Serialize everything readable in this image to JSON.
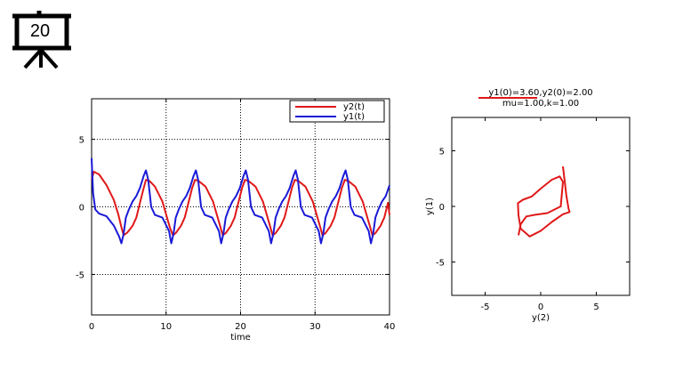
{
  "slide": {
    "number": "20",
    "icon": "presentation-screen-icon"
  },
  "chart_data": [
    {
      "type": "line",
      "title": "",
      "xlabel": "time",
      "ylabel": "",
      "xlim": [
        0,
        40
      ],
      "ylim": [
        -8,
        8
      ],
      "xticks": [
        0,
        10,
        20,
        30,
        40
      ],
      "yticks": [
        -5,
        0,
        5
      ],
      "grid": true,
      "legend": "top-right",
      "period": 6.7,
      "series": [
        {
          "name": "y2(t)",
          "color": "#e01818",
          "x": [
            0,
            0.3,
            1,
            2,
            3,
            3.6,
            4,
            4.3,
            4.8,
            5.5,
            6,
            6.5,
            7,
            7.3,
            7.8,
            8.5,
            9.5,
            10.5,
            10.9,
            11.3,
            12,
            12.5,
            13,
            13.5,
            13.9,
            14.4,
            15.3,
            16.3,
            17.3,
            17.6,
            18,
            18.7,
            19.2,
            19.7,
            20.2,
            20.6,
            21.1,
            22,
            23,
            24,
            24.3,
            24.7,
            25.4,
            25.9,
            26.4,
            26.9,
            27.3,
            27.8,
            28.7,
            29.7,
            30.7,
            31,
            31.4,
            32.1,
            32.6,
            33.1,
            33.6,
            34,
            34.5,
            35.4,
            36.4,
            37.4,
            37.7,
            38.1,
            38.8,
            39.3,
            39.8,
            40
          ],
          "y": [
            2.0,
            2.6,
            2.4,
            1.6,
            0.5,
            -0.6,
            -1.5,
            -2.1,
            -1.9,
            -1.4,
            -0.8,
            0.3,
            1.4,
            2.0,
            1.9,
            1.5,
            0.4,
            -1.5,
            -2.1,
            -1.95,
            -1.4,
            -0.8,
            0.3,
            1.4,
            2.0,
            1.9,
            1.5,
            0.4,
            -1.5,
            -2.1,
            -1.95,
            -1.4,
            -0.8,
            0.3,
            1.4,
            2.0,
            1.9,
            1.5,
            0.4,
            -1.5,
            -2.1,
            -1.95,
            -1.4,
            -0.8,
            0.3,
            1.4,
            2.0,
            1.9,
            1.5,
            0.4,
            -1.5,
            -2.1,
            -1.95,
            -1.4,
            -0.8,
            0.3,
            1.4,
            2.0,
            1.9,
            1.5,
            0.4,
            -1.5,
            -2.1,
            -1.95,
            -1.4,
            -0.8,
            0.3,
            -0.6
          ]
        },
        {
          "name": "y1(t)",
          "color": "#1a1ad8",
          "x": [
            0,
            0.2,
            0.5,
            1,
            2,
            3,
            3.7,
            4,
            4.3,
            4.6,
            5,
            5.5,
            6,
            6.5,
            7,
            7.3,
            7.6,
            8,
            8.5,
            9.5,
            10.4,
            10.7,
            11,
            11.3,
            11.7,
            12.2,
            12.7,
            13.2,
            13.7,
            14,
            14.3,
            14.7,
            15.2,
            16.2,
            17.1,
            17.4,
            17.7,
            18,
            18.4,
            18.9,
            19.4,
            19.9,
            20.4,
            20.7,
            21,
            21.4,
            21.9,
            22.9,
            23.8,
            24.1,
            24.4,
            24.7,
            25.1,
            25.6,
            26.1,
            26.6,
            27.1,
            27.4,
            27.7,
            28.1,
            28.6,
            29.6,
            30.5,
            30.8,
            31.1,
            31.4,
            31.8,
            32.3,
            32.8,
            33.3,
            33.8,
            34.1,
            34.4,
            34.8,
            35.3,
            36.3,
            37.2,
            37.5,
            37.8,
            38.1,
            38.5,
            39,
            39.5,
            40
          ],
          "y": [
            3.6,
            1.0,
            -0.2,
            -0.5,
            -0.7,
            -1.4,
            -2.2,
            -2.7,
            -2.0,
            -0.8,
            -0.2,
            0.4,
            0.8,
            1.4,
            2.3,
            2.7,
            2.0,
            0.0,
            -0.6,
            -0.8,
            -1.8,
            -2.7,
            -2.0,
            -0.8,
            -0.2,
            0.4,
            0.8,
            1.4,
            2.3,
            2.7,
            2.0,
            0.0,
            -0.6,
            -0.8,
            -1.8,
            -2.7,
            -2.0,
            -0.8,
            -0.2,
            0.4,
            0.8,
            1.4,
            2.3,
            2.7,
            2.0,
            0.0,
            -0.6,
            -0.8,
            -1.8,
            -2.7,
            -2.0,
            -0.8,
            -0.2,
            0.4,
            0.8,
            1.4,
            2.3,
            2.7,
            2.0,
            0.0,
            -0.6,
            -0.8,
            -1.8,
            -2.7,
            -2.0,
            -0.8,
            -0.2,
            0.4,
            0.8,
            1.4,
            2.3,
            2.7,
            2.0,
            0.0,
            -0.6,
            -0.8,
            -1.8,
            -2.7,
            -2.0,
            -0.8,
            -0.2,
            0.4,
            0.8,
            1.6
          ]
        }
      ]
    },
    {
      "type": "line",
      "title": "y1(0)=3.60,y2(0)=2.00",
      "subtitle": "mu=1.00,k=1.00",
      "xlabel": "y(2)",
      "ylabel": "y(1)",
      "xlim": [
        -8,
        8
      ],
      "ylim": [
        -8,
        8
      ],
      "xticks": [
        -5,
        0,
        5
      ],
      "yticks": [
        -5,
        0,
        5
      ],
      "grid": false,
      "legend": "",
      "series": [
        {
          "color": "#e01818",
          "x": [
            2.0,
            2.3,
            2.5,
            2.6,
            2.0,
            1.0,
            0.0,
            -1.0,
            -1.8,
            -2.0,
            -2.05,
            -1.6,
            -0.8,
            0.0,
            1.0,
            1.7,
            2.0,
            1.8,
            0.6,
            -0.5,
            -1.3,
            -1.8,
            -2.0
          ],
          "y": [
            3.6,
            1.0,
            -0.2,
            -0.5,
            -0.7,
            -1.4,
            -2.2,
            -2.7,
            -2.0,
            -0.8,
            0.3,
            0.6,
            0.9,
            1.6,
            2.4,
            2.7,
            2.2,
            0.0,
            -0.6,
            -0.75,
            -0.9,
            -1.6,
            -2.6
          ]
        }
      ]
    }
  ]
}
